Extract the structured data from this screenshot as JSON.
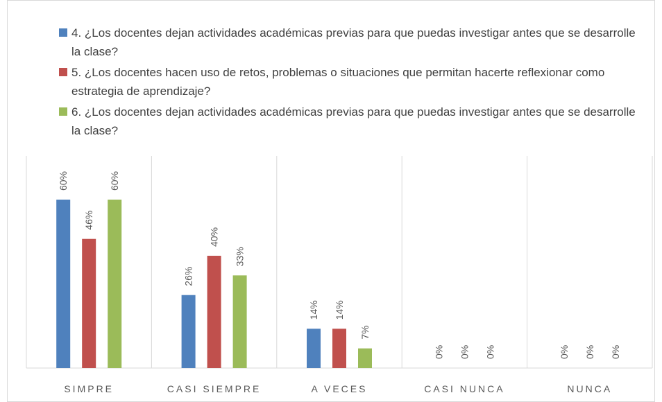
{
  "chart_data": {
    "type": "bar",
    "categories": [
      "SIMPRE",
      "CASI SIEMPRE",
      "A VECES",
      "CASI NUNCA",
      "NUNCA"
    ],
    "series": [
      {
        "name": "4. ¿Los docentes dejan actividades académicas previas para que puedas investigar antes que se desarrolle la clase?",
        "color": "#4f81bd",
        "values": [
          60,
          26,
          14,
          0,
          0
        ],
        "value_labels": [
          "60%",
          "26%",
          "14%",
          "0%",
          "0%"
        ]
      },
      {
        "name": "5. ¿Los docentes hacen uso de retos, problemas o situaciones que permitan hacerte reflexionar como estrategia de aprendizaje?",
        "color": "#c0504d",
        "values": [
          46,
          40,
          14,
          0,
          0
        ],
        "value_labels": [
          "46%",
          "40%",
          "14%",
          "0%",
          "0%"
        ]
      },
      {
        "name": "6. ¿Los docentes dejan actividades académicas previas para que puedas investigar antes que se desarrolle la clase?",
        "color": "#9bbb59",
        "values": [
          60,
          33,
          7,
          0,
          0
        ],
        "value_labels": [
          "60%",
          "33%",
          "7%",
          "0%",
          "0%"
        ]
      }
    ],
    "legend": "top"
  }
}
